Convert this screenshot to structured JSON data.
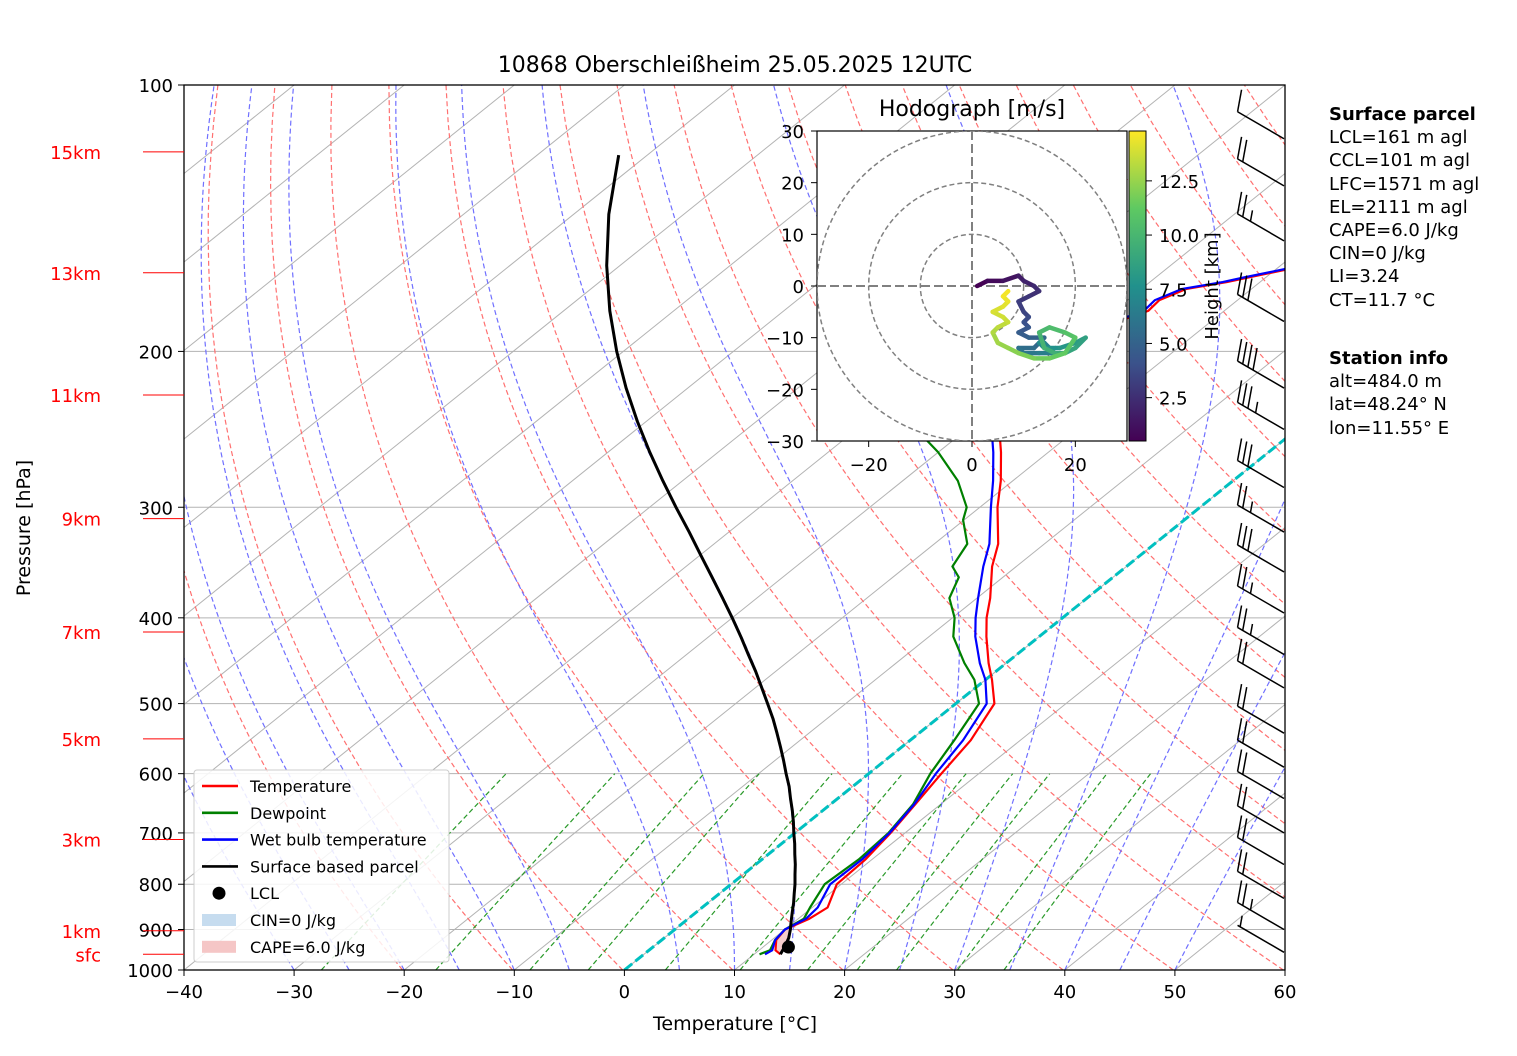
{
  "chart_data": {
    "type": "line",
    "title": "10868 Oberschleißheim 25.05.2025 12UTC",
    "xlabel": "Temperature [°C]",
    "ylabel": "Pressure [hPa]",
    "xlim": [
      -40,
      60
    ],
    "ylim": [
      1000,
      100
    ],
    "y_scale": "log",
    "grid": true,
    "x_ticks": [
      -40,
      -30,
      -20,
      -10,
      0,
      10,
      20,
      30,
      40,
      50,
      60
    ],
    "x_tick_labels": [
      "−40",
      "−30",
      "−20",
      "−10",
      "0",
      "10",
      "20",
      "30",
      "40",
      "50",
      "60"
    ],
    "y_ticks": [
      100,
      200,
      300,
      400,
      500,
      600,
      700,
      800,
      900,
      1000
    ],
    "height_labels": [
      {
        "label": "15km",
        "pressure": 119
      },
      {
        "label": "13km",
        "pressure": 163
      },
      {
        "label": "11km",
        "pressure": 224
      },
      {
        "label": "9km",
        "pressure": 309
      },
      {
        "label": "7km",
        "pressure": 415
      },
      {
        "label": "5km",
        "pressure": 548
      },
      {
        "label": "3km",
        "pressure": 712
      },
      {
        "label": "1km",
        "pressure": 903
      },
      {
        "label": "sfc",
        "pressure": 960
      }
    ],
    "series": [
      {
        "name": "Temperature",
        "color": "#ff0000",
        "pressure": [
          960,
          950,
          925,
          900,
          875,
          850,
          800,
          750,
          700,
          650,
          600,
          550,
          500,
          470,
          450,
          420,
          400,
          380,
          350,
          330,
          300,
          280,
          260,
          250,
          240,
          230,
          220,
          210,
          205,
          200,
          195,
          190,
          185,
          180,
          175,
          170,
          167,
          165,
          160,
          155,
          150,
          145,
          140,
          135,
          130,
          125,
          120,
          119
        ],
        "temperature": [
          12.4,
          11.5,
          10.4,
          10.0,
          11.0,
          11.4,
          9.6,
          9.4,
          8.7,
          7.7,
          6.6,
          5.5,
          3.5,
          0.6,
          -1.6,
          -4.8,
          -6.9,
          -8.8,
          -12.2,
          -14.2,
          -18.4,
          -21.1,
          -24.3,
          -26.1,
          -27.8,
          -29.6,
          -31.2,
          -31.3,
          -30.0,
          -28.3,
          -29.4,
          -29.3,
          -28.4,
          -26.9,
          -27.1,
          -25.9,
          -23.0,
          -21.6,
          -17.7,
          -14.1,
          -11.8,
          -10.4,
          -8.2,
          -6.7,
          -5.3,
          -3.0,
          -1.8,
          -0.5
        ]
      },
      {
        "name": "Dewpoint",
        "color": "#008000",
        "pressure": [
          960,
          950,
          925,
          900,
          875,
          850,
          800,
          750,
          700,
          650,
          600,
          550,
          500,
          470,
          450,
          420,
          400,
          380,
          360,
          350,
          330,
          310,
          300,
          280,
          260,
          250,
          240,
          230,
          220,
          210,
          205,
          200,
          195,
          190,
          185,
          180,
          175,
          170,
          165,
          160,
          155,
          150,
          145,
          140,
          135,
          130,
          125,
          120,
          119
        ],
        "temperature": [
          10.5,
          11.0,
          10.3,
          10.0,
          10.5,
          9.8,
          8.5,
          8.8,
          8.5,
          7.5,
          5.6,
          4.0,
          2.1,
          -1.0,
          -3.8,
          -7.8,
          -9.8,
          -12.5,
          -14.0,
          -15.8,
          -17.0,
          -20.1,
          -21.2,
          -25.0,
          -30.0,
          -33.0,
          -35.0,
          -38.5,
          -40.0,
          -44.0,
          -46.0,
          -47.0,
          -49.5,
          -50.5,
          -52.0,
          -52.5,
          -52.5,
          -52.0,
          -52.0,
          -53.0,
          -53.3,
          -52.5,
          -55.0,
          -55.5,
          -55.0,
          -53.5,
          -52.0,
          -51.0,
          -50.5
        ]
      },
      {
        "name": "Wet bulb temperature",
        "color": "#0000ff",
        "pressure": [
          960,
          950,
          925,
          900,
          875,
          850,
          800,
          750,
          700,
          650,
          600,
          550,
          500,
          470,
          450,
          420,
          400,
          380,
          350,
          330,
          300,
          280,
          260,
          250,
          240,
          230,
          220,
          210,
          205,
          200,
          195,
          190,
          185,
          180,
          175,
          170,
          167,
          165,
          160,
          155,
          150,
          145,
          140,
          135,
          130,
          125,
          120,
          119
        ],
        "temperature": [
          11.0,
          11.2,
          10.3,
          10.0,
          10.7,
          10.5,
          9.0,
          9.1,
          8.6,
          7.6,
          6.1,
          4.8,
          2.8,
          0.0,
          -2.4,
          -5.8,
          -7.9,
          -9.9,
          -13.0,
          -15.0,
          -19.0,
          -21.8,
          -25.0,
          -26.8,
          -28.5,
          -30.3,
          -31.8,
          -31.8,
          -30.5,
          -28.8,
          -29.8,
          -29.7,
          -28.8,
          -27.3,
          -27.5,
          -26.3,
          -23.4,
          -22.0,
          -18.1,
          -14.5,
          -12.2,
          -10.8,
          -8.6,
          -7.1,
          -5.7,
          -3.4,
          -2.2,
          -0.9
        ]
      },
      {
        "name": "Surface based parcel",
        "color": "#000000",
        "pressure": [
          960,
          940,
          920,
          900,
          880,
          860,
          840,
          820,
          800,
          780,
          760,
          740,
          720,
          700,
          680,
          660,
          640,
          620,
          600,
          580,
          560,
          540,
          520,
          500,
          480,
          460,
          440,
          420,
          400,
          380,
          360,
          340,
          320,
          300,
          280,
          260,
          240,
          220,
          200,
          180,
          160,
          140,
          120
        ],
        "temperature": [
          12.4,
          11.9,
          11.3,
          10.5,
          9.6,
          8.7,
          7.8,
          6.8,
          5.8,
          4.7,
          3.6,
          2.4,
          1.2,
          -0.1,
          -1.4,
          -2.8,
          -4.3,
          -5.8,
          -7.5,
          -9.2,
          -11.0,
          -12.9,
          -14.9,
          -17.1,
          -19.4,
          -21.8,
          -24.4,
          -27.1,
          -30.0,
          -33.1,
          -36.4,
          -39.9,
          -43.6,
          -47.6,
          -51.8,
          -56.2,
          -60.8,
          -65.6,
          -70.6,
          -75.8,
          -81.2,
          -86.8,
          -92.6
        ]
      }
    ],
    "lcl": {
      "pressure": 942,
      "temperature": 12.3
    },
    "isotherm_0": [
      {
        "t": 0,
        "p": 1000
      },
      {
        "t": 0,
        "p": 100
      }
    ],
    "dashed_guides": {
      "dry_adiabats_color": "#ff7070",
      "moist_adiabats_color": "#7070ff",
      "mixing_ratio_color": "#2a9a2a",
      "zero_isotherm_color": "#00c0c0"
    },
    "legend": {
      "placement": "lower-left",
      "entries": [
        {
          "label": "Temperature",
          "kind": "line",
          "color": "#ff0000"
        },
        {
          "label": "Dewpoint",
          "kind": "line",
          "color": "#008000"
        },
        {
          "label": "Wet bulb temperature",
          "kind": "line",
          "color": "#0000ff"
        },
        {
          "label": "Surface based parcel",
          "kind": "line",
          "color": "#000000"
        },
        {
          "label": "LCL",
          "kind": "dot",
          "color": "#000000"
        },
        {
          "label": "CIN=0 J/kg",
          "kind": "patch",
          "color": "#c6dcef"
        },
        {
          "label": "CAPE=6.0 J/kg",
          "kind": "patch",
          "color": "#f5c6c6"
        }
      ]
    },
    "wind_barbs": [
      {
        "pressure": 115,
        "kt": 10
      },
      {
        "pressure": 130,
        "kt": 20
      },
      {
        "pressure": 150,
        "kt": 25
      },
      {
        "pressure": 185,
        "kt": 30
      },
      {
        "pressure": 220,
        "kt": 40
      },
      {
        "pressure": 245,
        "kt": 35
      },
      {
        "pressure": 285,
        "kt": 30
      },
      {
        "pressure": 320,
        "kt": 25
      },
      {
        "pressure": 355,
        "kt": 30
      },
      {
        "pressure": 395,
        "kt": 25
      },
      {
        "pressure": 440,
        "kt": 25
      },
      {
        "pressure": 480,
        "kt": 20
      },
      {
        "pressure": 540,
        "kt": 20
      },
      {
        "pressure": 590,
        "kt": 20
      },
      {
        "pressure": 640,
        "kt": 20
      },
      {
        "pressure": 700,
        "kt": 20
      },
      {
        "pressure": 760,
        "kt": 20
      },
      {
        "pressure": 830,
        "kt": 20
      },
      {
        "pressure": 900,
        "kt": 25
      },
      {
        "pressure": 955,
        "kt": 5
      }
    ],
    "hodograph": {
      "title": "Hodograph [m/s]",
      "xlim": [
        -30,
        30
      ],
      "ylim": [
        -30,
        30
      ],
      "x_ticks": [
        -20,
        0,
        20
      ],
      "x_tick_labels": [
        "−20",
        "0",
        "20"
      ],
      "y_ticks": [
        30,
        20,
        10,
        0,
        -10,
        -20,
        -30
      ],
      "y_tick_labels": [
        "30",
        "20",
        "10",
        "0",
        "−10",
        "−20",
        "−30"
      ],
      "rings": [
        10,
        20,
        30
      ],
      "colorbar_label": "Height [km]",
      "colorbar_ticks": [
        2.5,
        5.0,
        7.5,
        10.0,
        12.5
      ],
      "colorbar_range": [
        0.5,
        14.8
      ],
      "points": [
        {
          "u": 1,
          "v": 0,
          "h": 0.5
        },
        {
          "u": 3,
          "v": 1,
          "h": 0.9
        },
        {
          "u": 6,
          "v": 1,
          "h": 1.3
        },
        {
          "u": 9,
          "v": 2,
          "h": 1.7
        },
        {
          "u": 10,
          "v": 1,
          "h": 2.0
        },
        {
          "u": 12,
          "v": 0,
          "h": 2.3
        },
        {
          "u": 13,
          "v": -1,
          "h": 2.6
        },
        {
          "u": 11,
          "v": -2,
          "h": 2.9
        },
        {
          "u": 9,
          "v": -3,
          "h": 3.2
        },
        {
          "u": 10,
          "v": -5,
          "h": 3.5
        },
        {
          "u": 11,
          "v": -6,
          "h": 3.8
        },
        {
          "u": 10,
          "v": -7,
          "h": 4.1
        },
        {
          "u": 11,
          "v": -8,
          "h": 4.4
        },
        {
          "u": 9,
          "v": -9,
          "h": 4.7
        },
        {
          "u": 11,
          "v": -10,
          "h": 5.0
        },
        {
          "u": 14,
          "v": -10,
          "h": 5.3
        },
        {
          "u": 12,
          "v": -12,
          "h": 5.6
        },
        {
          "u": 9,
          "v": -12,
          "h": 5.9
        },
        {
          "u": 10,
          "v": -13,
          "h": 6.2
        },
        {
          "u": 13,
          "v": -13,
          "h": 6.5
        },
        {
          "u": 16,
          "v": -13,
          "h": 6.8
        },
        {
          "u": 14,
          "v": -11,
          "h": 7.1
        },
        {
          "u": 13,
          "v": -11,
          "h": 7.4
        },
        {
          "u": 14,
          "v": -12,
          "h": 7.7
        },
        {
          "u": 17,
          "v": -12,
          "h": 8.0
        },
        {
          "u": 20,
          "v": -11,
          "h": 8.3
        },
        {
          "u": 22,
          "v": -10,
          "h": 8.6
        },
        {
          "u": 20,
          "v": -12,
          "h": 8.9
        },
        {
          "u": 18,
          "v": -13,
          "h": 9.2
        },
        {
          "u": 16,
          "v": -13,
          "h": 9.5
        },
        {
          "u": 14,
          "v": -12,
          "h": 9.8
        },
        {
          "u": 13,
          "v": -9,
          "h": 10.1
        },
        {
          "u": 15,
          "v": -8,
          "h": 10.4
        },
        {
          "u": 18,
          "v": -9,
          "h": 10.7
        },
        {
          "u": 20,
          "v": -10,
          "h": 11.0
        },
        {
          "u": 18,
          "v": -13,
          "h": 11.3
        },
        {
          "u": 15,
          "v": -14,
          "h": 11.6
        },
        {
          "u": 12,
          "v": -14,
          "h": 11.9
        },
        {
          "u": 9,
          "v": -13,
          "h": 12.2
        },
        {
          "u": 7,
          "v": -12,
          "h": 12.5
        },
        {
          "u": 5,
          "v": -11,
          "h": 12.8
        },
        {
          "u": 4,
          "v": -9,
          "h": 13.1
        },
        {
          "u": 5,
          "v": -8,
          "h": 13.4
        },
        {
          "u": 7,
          "v": -7,
          "h": 13.6
        },
        {
          "u": 6,
          "v": -6,
          "h": 13.8
        },
        {
          "u": 4,
          "v": -5,
          "h": 14.0
        },
        {
          "u": 6,
          "v": -4,
          "h": 14.2
        },
        {
          "u": 7,
          "v": -3,
          "h": 14.4
        },
        {
          "u": 6,
          "v": -2,
          "h": 14.6
        },
        {
          "u": 7,
          "v": -1,
          "h": 14.8
        }
      ]
    }
  },
  "info": {
    "surface_parcel": {
      "heading": "Surface parcel",
      "lines": [
        "LCL=161 m agl",
        "CCL=101 m agl",
        "LFC=1571 m agl",
        "EL=2111 m agl",
        "CAPE=6.0 J/kg",
        "CIN=0 J/kg",
        "LI=3.24",
        "CT=11.7 °C"
      ]
    },
    "station": {
      "heading": "Station info",
      "lines": [
        "alt=484.0 m",
        "lat=48.24° N",
        "lon=11.55° E"
      ]
    }
  }
}
